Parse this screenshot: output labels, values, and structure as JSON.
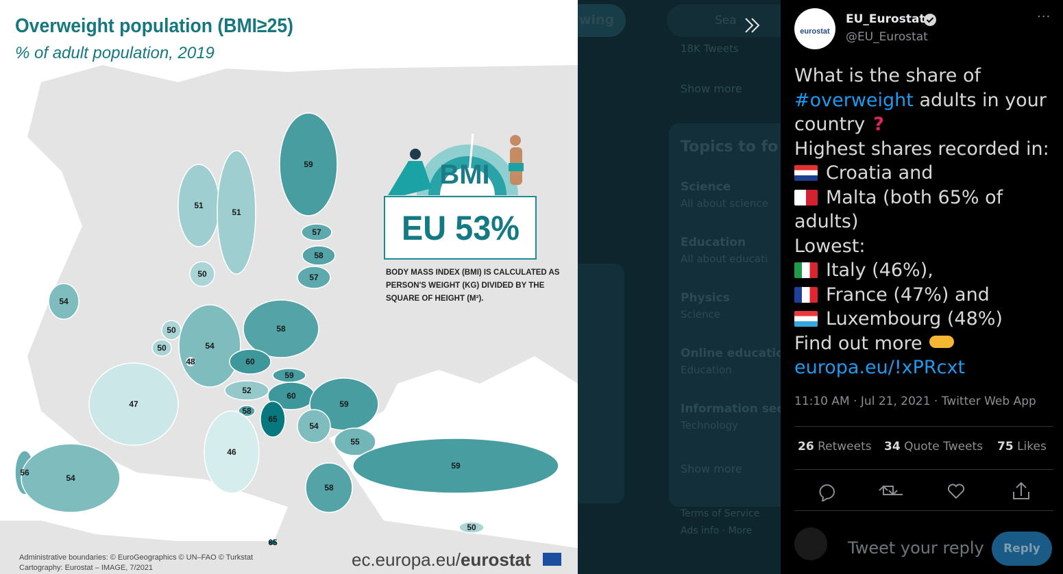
{
  "map_image": {
    "title": "Overweight population (BMI≥25)",
    "subtitle": "% of adult population, 2019",
    "values": [
      59,
      51,
      51,
      57,
      58,
      57,
      50,
      54,
      58,
      50,
      50,
      54,
      48,
      60,
      59,
      52,
      60,
      59,
      47,
      58,
      65,
      54,
      55,
      46,
      56,
      54,
      59,
      58,
      50,
      65
    ],
    "badge": "BMI",
    "eu_average": "EU 53%",
    "note_lines": [
      "BODY MASS INDEX (BMI) IS CALCULATED AS",
      "PERSON'S WEIGHT (KG) DIVIDED BY THE",
      "SQUARE OF HEIGHT (M²)."
    ],
    "credits": [
      "Administrative boundaries: © EuroGeographics © UN–FAO © Turkstat",
      "Cartography: Eurostat – IMAGE, 7/2021"
    ],
    "source_prefix": "ec.europa.eu/",
    "source_brand": "eurostat"
  },
  "background": {
    "follow_button": "wing",
    "search": "Sea",
    "trend_count": "18K Tweets",
    "show_more": "Show more",
    "section_title": "Topics to fo",
    "topics": [
      {
        "name": "Science",
        "sub": "All about science"
      },
      {
        "name": "Education",
        "sub": "All about educati"
      },
      {
        "name": "Physics",
        "sub": "Science"
      },
      {
        "name": "Online education",
        "sub": "Education"
      },
      {
        "name": "Information secu",
        "sub": "Technology"
      }
    ],
    "show_more_2": "Show more",
    "footer": [
      "Terms of Service",
      "Ads info · More"
    ]
  },
  "tweet": {
    "avatar": "eurostat",
    "author": "EU_Eurostat",
    "handle": "@EU_Eurostat",
    "lines": [
      "What is the share of",
      "#overweight",
      " adults in your",
      "country",
      "Highest shares recorded in:",
      "Croatia and",
      "Malta (both 65% of",
      "adults)",
      "Lowest:",
      "Italy (46%),",
      "France (47%) and",
      "Luxembourg (48%)",
      "Find out more",
      "europa.eu/!xPRcxt"
    ],
    "meta": "11:10 AM · Jul 21, 2021 · Twitter Web App",
    "stats": [
      {
        "count": 26,
        "label": "Retweets"
      },
      {
        "count": 34,
        "label": "Quote Tweets"
      },
      {
        "count": 75,
        "label": "Likes"
      }
    ],
    "reply_placeholder": "Tweet your reply",
    "reply_button": "Reply"
  }
}
